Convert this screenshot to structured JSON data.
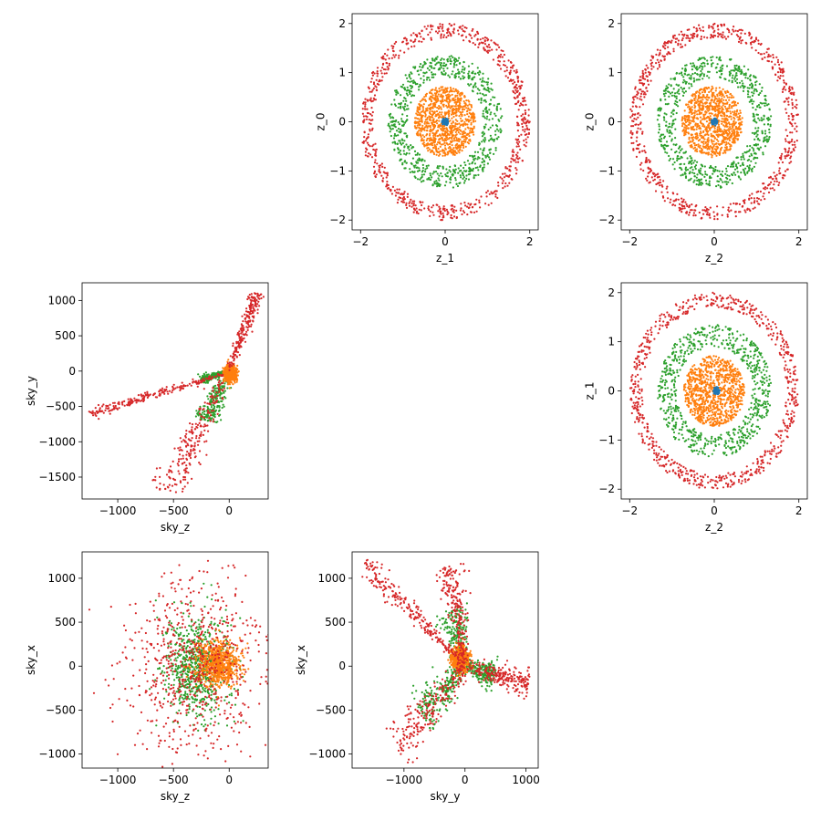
{
  "colors": {
    "c0": "#1f77b4",
    "c1": "#ff7f0e",
    "c2": "#2ca02c",
    "c3": "#d62728"
  },
  "chart_data": [
    {
      "id": "z1-z0",
      "type": "scatter",
      "grid_position": [
        0,
        1
      ],
      "xlabel": "z_1",
      "ylabel": "z_0",
      "xlim": [
        -2.2,
        2.2
      ],
      "ylim": [
        -2.2,
        2.2
      ],
      "xticks": [
        -2,
        0,
        2
      ],
      "yticks": [
        -2,
        -1,
        0,
        1,
        2
      ],
      "grid": false,
      "series": [
        {
          "color": "#d62728",
          "shape": "ring",
          "center": [
            0,
            0
          ],
          "radius_range": [
            1.7,
            2.0
          ]
        },
        {
          "color": "#2ca02c",
          "shape": "ring",
          "center": [
            0,
            0
          ],
          "radius_range": [
            0.9,
            1.35
          ]
        },
        {
          "color": "#ff7f0e",
          "shape": "disk",
          "center": [
            0,
            0
          ],
          "radius_range": [
            0.0,
            0.72
          ]
        },
        {
          "color": "#1f77b4",
          "shape": "disk",
          "center": [
            0,
            0
          ],
          "radius_range": [
            0.0,
            0.08
          ]
        }
      ]
    },
    {
      "id": "z2-z0",
      "type": "scatter",
      "grid_position": [
        0,
        2
      ],
      "xlabel": "z_2",
      "ylabel": "z_0",
      "xlim": [
        -2.2,
        2.2
      ],
      "ylim": [
        -2.2,
        2.2
      ],
      "xticks": [
        -2,
        0,
        2
      ],
      "yticks": [
        -2,
        -1,
        0,
        1,
        2
      ],
      "grid": false,
      "series": [
        {
          "color": "#d62728",
          "shape": "ring",
          "center": [
            0,
            0
          ],
          "radius_range": [
            1.7,
            2.0
          ]
        },
        {
          "color": "#2ca02c",
          "shape": "ring",
          "center": [
            0,
            0
          ],
          "radius_range": [
            0.9,
            1.35
          ]
        },
        {
          "color": "#ff7f0e",
          "shape": "disk",
          "center": [
            -0.05,
            0
          ],
          "radius_range": [
            0.0,
            0.72
          ]
        },
        {
          "color": "#1f77b4",
          "shape": "disk",
          "center": [
            0,
            0
          ],
          "radius_range": [
            0.0,
            0.08
          ]
        }
      ]
    },
    {
      "id": "z2-z1",
      "type": "scatter",
      "grid_position": [
        1,
        2
      ],
      "xlabel": "z_2",
      "ylabel": "z_1",
      "xlim": [
        -2.2,
        2.2
      ],
      "ylim": [
        -2.2,
        2.2
      ],
      "xticks": [
        -2,
        0,
        2
      ],
      "yticks": [
        -2,
        -1,
        0,
        1,
        2
      ],
      "grid": false,
      "series": [
        {
          "color": "#d62728",
          "shape": "ring",
          "center": [
            0,
            0
          ],
          "radius_range": [
            1.7,
            2.0
          ]
        },
        {
          "color": "#2ca02c",
          "shape": "ring",
          "center": [
            0,
            0
          ],
          "radius_range": [
            0.9,
            1.35
          ]
        },
        {
          "color": "#ff7f0e",
          "shape": "disk",
          "center": [
            0,
            0
          ],
          "radius_range": [
            0.0,
            0.72
          ]
        },
        {
          "color": "#1f77b4",
          "shape": "disk",
          "center": [
            0.05,
            0
          ],
          "radius_range": [
            0.0,
            0.08
          ]
        }
      ]
    },
    {
      "id": "skyz-skyy",
      "type": "scatter",
      "grid_position": [
        1,
        0
      ],
      "xlabel": "sky_z",
      "ylabel": "sky_y",
      "xlim": [
        -1320,
        350
      ],
      "ylim": [
        -1810,
        1250
      ],
      "xticks": [
        -1000,
        -500,
        0
      ],
      "yticks": [
        -1500,
        -1000,
        -500,
        0,
        500,
        1000
      ],
      "grid": false,
      "series": [
        {
          "color": "#2ca02c",
          "shape": "segments",
          "segments": [
            {
              "from": [
                0,
                0
              ],
              "to": [
                -220,
                -700
              ],
              "spread": 40
            },
            {
              "from": [
                0,
                0
              ],
              "to": [
                -250,
                -120
              ],
              "spread": 20
            }
          ]
        },
        {
          "color": "#ff7f0e",
          "shape": "blob",
          "center": [
            10,
            -40
          ],
          "size": [
            60,
            120
          ]
        },
        {
          "color": "#d62728",
          "shape": "segments",
          "segments": [
            {
              "from": [
                0,
                -20
              ],
              "to": [
                -1250,
                -600
              ],
              "spread": 25
            },
            {
              "from": [
                0,
                0
              ],
              "to": [
                250,
                1100
              ],
              "spread": 25
            },
            {
              "from": [
                -50,
                -100
              ],
              "to": [
                -550,
                -1700
              ],
              "spread": 55
            }
          ]
        }
      ]
    },
    {
      "id": "skyz-skyx",
      "type": "scatter",
      "grid_position": [
        2,
        0
      ],
      "xlabel": "sky_z",
      "ylabel": "sky_x",
      "xlim": [
        -1320,
        350
      ],
      "ylim": [
        -1160,
        1300
      ],
      "xticks": [
        -1000,
        -500,
        0
      ],
      "yticks": [
        -1000,
        -500,
        0,
        500,
        1000
      ],
      "grid": false,
      "series": [
        {
          "color": "#2ca02c",
          "shape": "blob",
          "center": [
            -300,
            0
          ],
          "size": [
            320,
            650
          ]
        },
        {
          "color": "#ff7f0e",
          "shape": "blob",
          "center": [
            -100,
            20
          ],
          "size": [
            220,
            280
          ]
        },
        {
          "color": "#d62728",
          "shape": "blob",
          "center": [
            -300,
            0
          ],
          "size": [
            700,
            1100
          ]
        }
      ]
    },
    {
      "id": "skyy-skyx",
      "type": "scatter",
      "grid_position": [
        2,
        1
      ],
      "xlabel": "sky_y",
      "ylabel": "sky_x",
      "xlim": [
        -1850,
        1200
      ],
      "ylim": [
        -1160,
        1300
      ],
      "xticks": [
        -1000,
        0,
        1000
      ],
      "yticks": [
        -1000,
        -500,
        0,
        500,
        1000
      ],
      "grid": false,
      "series": [
        {
          "color": "#2ca02c",
          "shape": "segments",
          "segments": [
            {
              "from": [
                0,
                0
              ],
              "to": [
                -700,
                -550
              ],
              "spread": 90
            },
            {
              "from": [
                0,
                0
              ],
              "to": [
                -250,
                650
              ],
              "spread": 90
            },
            {
              "from": [
                0,
                0
              ],
              "to": [
                500,
                -100
              ],
              "spread": 60
            }
          ]
        },
        {
          "color": "#ff7f0e",
          "shape": "blob",
          "center": [
            -80,
            80
          ],
          "size": [
            150,
            150
          ]
        },
        {
          "color": "#d62728",
          "shape": "segments",
          "segments": [
            {
              "from": [
                0,
                0
              ],
              "to": [
                -1100,
                -950
              ],
              "spread": 110
            },
            {
              "from": [
                0,
                0
              ],
              "to": [
                -1650,
                1180
              ],
              "spread": 50
            },
            {
              "from": [
                0,
                0
              ],
              "to": [
                1050,
                -200
              ],
              "spread": 60
            },
            {
              "from": [
                0,
                0
              ],
              "to": [
                -250,
                1150
              ],
              "spread": 80
            }
          ]
        }
      ]
    }
  ]
}
